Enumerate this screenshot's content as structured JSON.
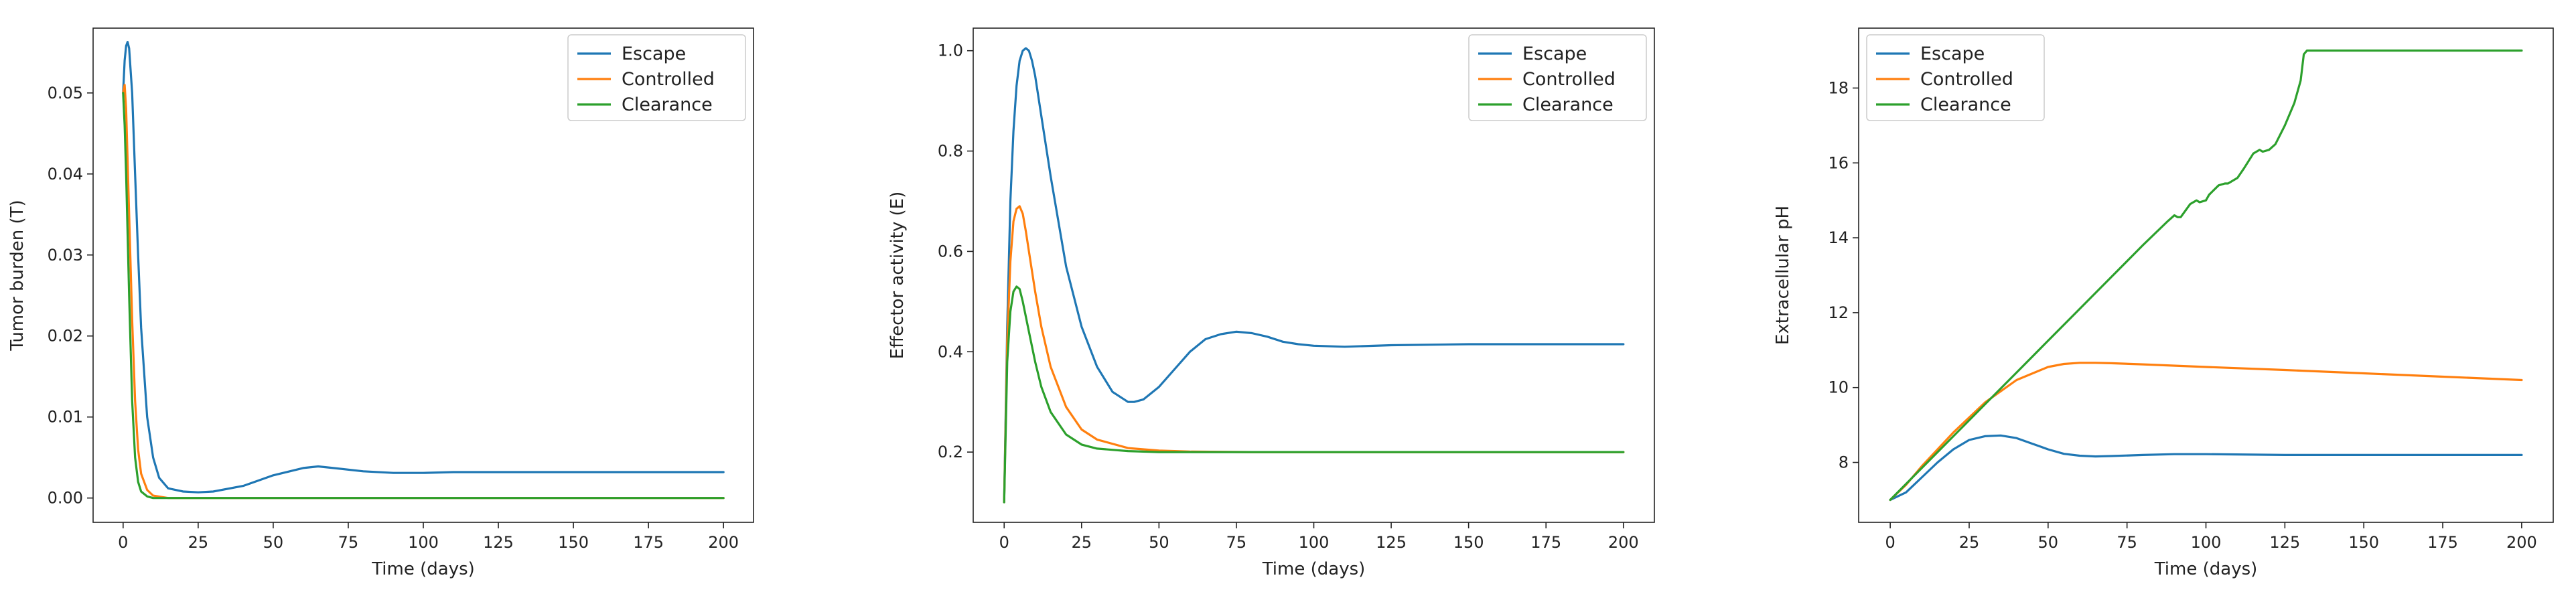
{
  "colors": {
    "escape": "#1f77b4",
    "controlled": "#ff7f0e",
    "clearance": "#2ca02c"
  },
  "chart_data": [
    {
      "type": "line",
      "xlabel": "Time (days)",
      "ylabel": "Tumor burden (T)",
      "xlim": [
        -10,
        210
      ],
      "ylim": [
        -0.003,
        0.058
      ],
      "xticks": [
        0,
        25,
        50,
        75,
        100,
        125,
        150,
        175,
        200
      ],
      "yticks": [
        0.0,
        0.01,
        0.02,
        0.03,
        0.04,
        0.05
      ],
      "ytick_labels": [
        "0.00",
        "0.01",
        "0.02",
        "0.03",
        "0.04",
        "0.05"
      ],
      "grid": false,
      "legend": "top-right",
      "series": [
        {
          "name": "Escape",
          "color": "#1f77b4",
          "x": [
            0,
            0.5,
            1,
            1.5,
            2,
            3,
            4,
            5,
            6,
            8,
            10,
            12,
            15,
            20,
            25,
            30,
            40,
            50,
            60,
            65,
            70,
            80,
            90,
            100,
            110,
            125,
            150,
            175,
            200
          ],
          "y": [
            0.05,
            0.054,
            0.0558,
            0.0563,
            0.0555,
            0.05,
            0.04,
            0.03,
            0.021,
            0.01,
            0.005,
            0.0025,
            0.0012,
            0.0008,
            0.0007,
            0.0008,
            0.0015,
            0.0028,
            0.0037,
            0.0039,
            0.0037,
            0.0033,
            0.0031,
            0.0031,
            0.0032,
            0.0032,
            0.0032,
            0.0032,
            0.0032
          ]
        },
        {
          "name": "Controlled",
          "color": "#ff7f0e",
          "x": [
            0,
            0.5,
            1,
            2,
            3,
            4,
            5,
            6,
            8,
            10,
            15,
            20,
            50,
            100,
            150,
            200
          ],
          "y": [
            0.05,
            0.051,
            0.048,
            0.035,
            0.022,
            0.012,
            0.006,
            0.003,
            0.001,
            0.0003,
            0.0,
            0.0,
            0.0,
            0.0,
            0.0,
            0.0
          ]
        },
        {
          "name": "Clearance",
          "color": "#2ca02c",
          "x": [
            0,
            0.5,
            1,
            2,
            3,
            4,
            5,
            6,
            8,
            10,
            15,
            50,
            100,
            150,
            200
          ],
          "y": [
            0.05,
            0.046,
            0.04,
            0.025,
            0.012,
            0.005,
            0.002,
            0.0008,
            0.0002,
            0.0,
            0.0,
            0.0,
            0.0,
            0.0,
            0.0
          ]
        }
      ]
    },
    {
      "type": "line",
      "xlabel": "Time (days)",
      "ylabel": "Effector activity (E)",
      "xlim": [
        -10,
        210
      ],
      "ylim": [
        0.06,
        1.045
      ],
      "xticks": [
        0,
        25,
        50,
        75,
        100,
        125,
        150,
        175,
        200
      ],
      "yticks": [
        0.2,
        0.4,
        0.6,
        0.8,
        1.0
      ],
      "ytick_labels": [
        "0.2",
        "0.4",
        "0.6",
        "0.8",
        "1.0"
      ],
      "grid": false,
      "legend": "top-right",
      "series": [
        {
          "name": "Escape",
          "color": "#1f77b4",
          "x": [
            0,
            1,
            2,
            3,
            4,
            5,
            6,
            7,
            8,
            9,
            10,
            12,
            15,
            20,
            25,
            30,
            35,
            40,
            42,
            45,
            50,
            55,
            60,
            65,
            70,
            75,
            80,
            85,
            90,
            95,
            100,
            110,
            125,
            150,
            175,
            200
          ],
          "y": [
            0.1,
            0.45,
            0.7,
            0.84,
            0.93,
            0.98,
            1.0,
            1.005,
            1.0,
            0.98,
            0.95,
            0.87,
            0.75,
            0.57,
            0.45,
            0.37,
            0.32,
            0.3,
            0.3,
            0.305,
            0.33,
            0.365,
            0.4,
            0.425,
            0.435,
            0.44,
            0.437,
            0.43,
            0.42,
            0.415,
            0.412,
            0.41,
            0.413,
            0.415,
            0.415,
            0.415
          ]
        },
        {
          "name": "Controlled",
          "color": "#ff7f0e",
          "x": [
            0,
            1,
            2,
            3,
            4,
            5,
            6,
            7,
            8,
            10,
            12,
            15,
            20,
            25,
            30,
            40,
            50,
            60,
            80,
            100,
            150,
            200
          ],
          "y": [
            0.1,
            0.42,
            0.58,
            0.66,
            0.685,
            0.69,
            0.675,
            0.64,
            0.6,
            0.52,
            0.45,
            0.37,
            0.29,
            0.245,
            0.225,
            0.208,
            0.203,
            0.201,
            0.2,
            0.2,
            0.2,
            0.2
          ]
        },
        {
          "name": "Clearance",
          "color": "#2ca02c",
          "x": [
            0,
            1,
            2,
            3,
            4,
            5,
            6,
            7,
            8,
            10,
            12,
            15,
            20,
            25,
            30,
            40,
            50,
            60,
            80,
            100,
            150,
            200
          ],
          "y": [
            0.1,
            0.38,
            0.48,
            0.52,
            0.53,
            0.525,
            0.5,
            0.47,
            0.44,
            0.38,
            0.33,
            0.28,
            0.235,
            0.215,
            0.207,
            0.202,
            0.2,
            0.2,
            0.2,
            0.2,
            0.2,
            0.2
          ]
        }
      ]
    },
    {
      "type": "line",
      "xlabel": "Time (days)",
      "ylabel": "Extracellular pH",
      "xlim": [
        -10,
        210
      ],
      "ylim": [
        6.4,
        19.6
      ],
      "xticks": [
        0,
        25,
        50,
        75,
        100,
        125,
        150,
        175,
        200
      ],
      "yticks": [
        8,
        10,
        12,
        14,
        16,
        18
      ],
      "ytick_labels": [
        "8",
        "10",
        "12",
        "14",
        "16",
        "18"
      ],
      "grid": false,
      "legend": "top-left",
      "series": [
        {
          "name": "Escape",
          "color": "#1f77b4",
          "x": [
            0,
            5,
            10,
            15,
            20,
            25,
            30,
            35,
            40,
            45,
            50,
            55,
            60,
            65,
            70,
            80,
            90,
            100,
            125,
            150,
            175,
            200
          ],
          "y": [
            7.0,
            7.2,
            7.6,
            8.0,
            8.35,
            8.6,
            8.7,
            8.72,
            8.65,
            8.5,
            8.35,
            8.23,
            8.18,
            8.16,
            8.17,
            8.2,
            8.22,
            8.22,
            8.2,
            8.2,
            8.2,
            8.2
          ]
        },
        {
          "name": "Controlled",
          "color": "#ff7f0e",
          "x": [
            0,
            5,
            10,
            20,
            30,
            40,
            50,
            55,
            60,
            65,
            70,
            80,
            100,
            125,
            150,
            175,
            200
          ],
          "y": [
            7.0,
            7.4,
            7.9,
            8.8,
            9.6,
            10.2,
            10.55,
            10.63,
            10.66,
            10.66,
            10.65,
            10.62,
            10.55,
            10.47,
            10.38,
            10.29,
            10.2
          ]
        },
        {
          "name": "Clearance",
          "color": "#2ca02c",
          "x": [
            0,
            10,
            20,
            30,
            40,
            50,
            60,
            70,
            80,
            88,
            90,
            91,
            92,
            95,
            97,
            98,
            100,
            101,
            104,
            106,
            107,
            110,
            112,
            115,
            117,
            118,
            120,
            122,
            125,
            128,
            130,
            131,
            132,
            140,
            150,
            175,
            200
          ],
          "y": [
            7.0,
            7.85,
            8.7,
            9.55,
            10.4,
            11.25,
            12.1,
            12.95,
            13.8,
            14.45,
            14.6,
            14.55,
            14.55,
            14.9,
            15.0,
            14.95,
            15.0,
            15.15,
            15.4,
            15.45,
            15.45,
            15.6,
            15.85,
            16.25,
            16.35,
            16.3,
            16.35,
            16.5,
            17.0,
            17.6,
            18.2,
            18.9,
            19.0,
            19.0,
            19.0,
            19.0,
            19.0
          ]
        }
      ]
    }
  ]
}
